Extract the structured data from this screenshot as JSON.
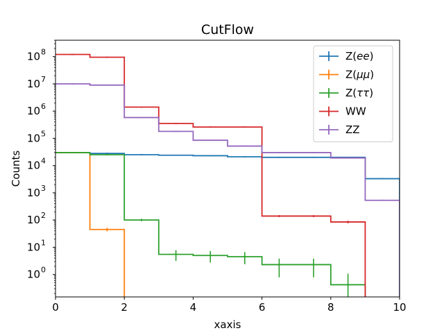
{
  "chart_data": {
    "type": "line",
    "title": "CutFlow",
    "xlabel": "xaxis",
    "ylabel": "Counts",
    "xlim": [
      0,
      10
    ],
    "ylim": [
      0.15,
      400000000
    ],
    "yscale": "log",
    "grid": false,
    "legend_position": "top-right",
    "x_ticks": [
      "0",
      "2",
      "4",
      "6",
      "8",
      "10"
    ],
    "y_ticks": [
      {
        "base": "10",
        "exp": "0",
        "value": 1
      },
      {
        "base": "10",
        "exp": "1",
        "value": 10
      },
      {
        "base": "10",
        "exp": "2",
        "value": 100
      },
      {
        "base": "10",
        "exp": "3",
        "value": 1000
      },
      {
        "base": "10",
        "exp": "4",
        "value": 10000
      },
      {
        "base": "10",
        "exp": "5",
        "value": 100000
      },
      {
        "base": "10",
        "exp": "6",
        "value": 1000000
      },
      {
        "base": "10",
        "exp": "7",
        "value": 10000000
      },
      {
        "base": "10",
        "exp": "8",
        "value": 100000000
      }
    ],
    "bin_edges": [
      0,
      1,
      2,
      3,
      4,
      5,
      6,
      7,
      8,
      9,
      10
    ],
    "series": [
      {
        "name": "Z(ee)",
        "legend_main": "Z(",
        "legend_italic": "ee",
        "legend_tail": ")",
        "color": "#1f77b4",
        "values": [
          30000,
          28000,
          25000,
          24000,
          23000,
          21000,
          20000,
          20000,
          20000,
          3300
        ]
      },
      {
        "name": "Z(μμ)",
        "legend_main": "Z(",
        "legend_italic": "μμ",
        "legend_tail": ")",
        "color": "#ff7f0e",
        "values": [
          30000,
          45,
          0,
          0,
          0,
          0,
          0,
          0,
          0,
          0
        ]
      },
      {
        "name": "Z(ττ)",
        "legend_main": "Z(",
        "legend_italic": "ττ",
        "legend_tail": ")",
        "color": "#2ca02c",
        "values": [
          30000,
          25000,
          100,
          5.5,
          5.0,
          4.5,
          2.3,
          2.3,
          0.42,
          0
        ]
      },
      {
        "name": "WW",
        "legend_main": "WW",
        "legend_italic": "",
        "legend_tail": "",
        "color": "#d62728",
        "values": [
          120000000,
          95000000,
          1400000,
          350000,
          260000,
          260000,
          140,
          140,
          85,
          0
        ]
      },
      {
        "name": "ZZ",
        "legend_main": "ZZ",
        "legend_italic": "",
        "legend_tail": "",
        "color": "#9467bd",
        "values": [
          10000000,
          9000000,
          580000,
          180000,
          85000,
          52000,
          30000,
          30000,
          19000,
          530
        ]
      }
    ]
  }
}
